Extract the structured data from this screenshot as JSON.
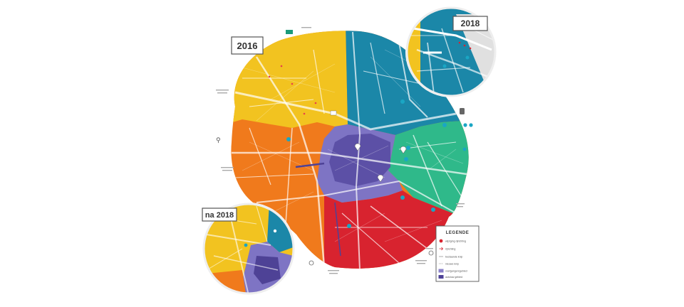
{
  "map": {
    "years": {
      "main": "2016",
      "inset_top": "2018",
      "inset_bottom": "na 2018"
    },
    "zone_colors": {
      "yellow": "#f2c320",
      "teal": "#1b87a8",
      "green": "#2fb98a",
      "purple": "#6a5fb0",
      "violet": "#4e4296",
      "orange": "#f07a1c",
      "red": "#d8232f"
    },
    "legend": {
      "title": "LEGENDE",
      "items": [
        {
          "icon": "red-circle-icon",
          "color": "#d8232f",
          "label": "wijziging rijrichting"
        },
        {
          "icon": "arrow-icon",
          "color": "#d8232f",
          "label": "rijrichting"
        },
        {
          "icon": "line-icon",
          "color": "#999999",
          "label": "bestaande knip"
        },
        {
          "icon": "line-icon",
          "color": "#999999",
          "label": "nieuwe knip"
        },
        {
          "icon": "swatch-icon",
          "color": "#8a80c8",
          "label": "voetgangersgebied"
        },
        {
          "icon": "swatch-icon",
          "color": "#4e4296",
          "label": "autoluw gebied"
        }
      ]
    }
  }
}
